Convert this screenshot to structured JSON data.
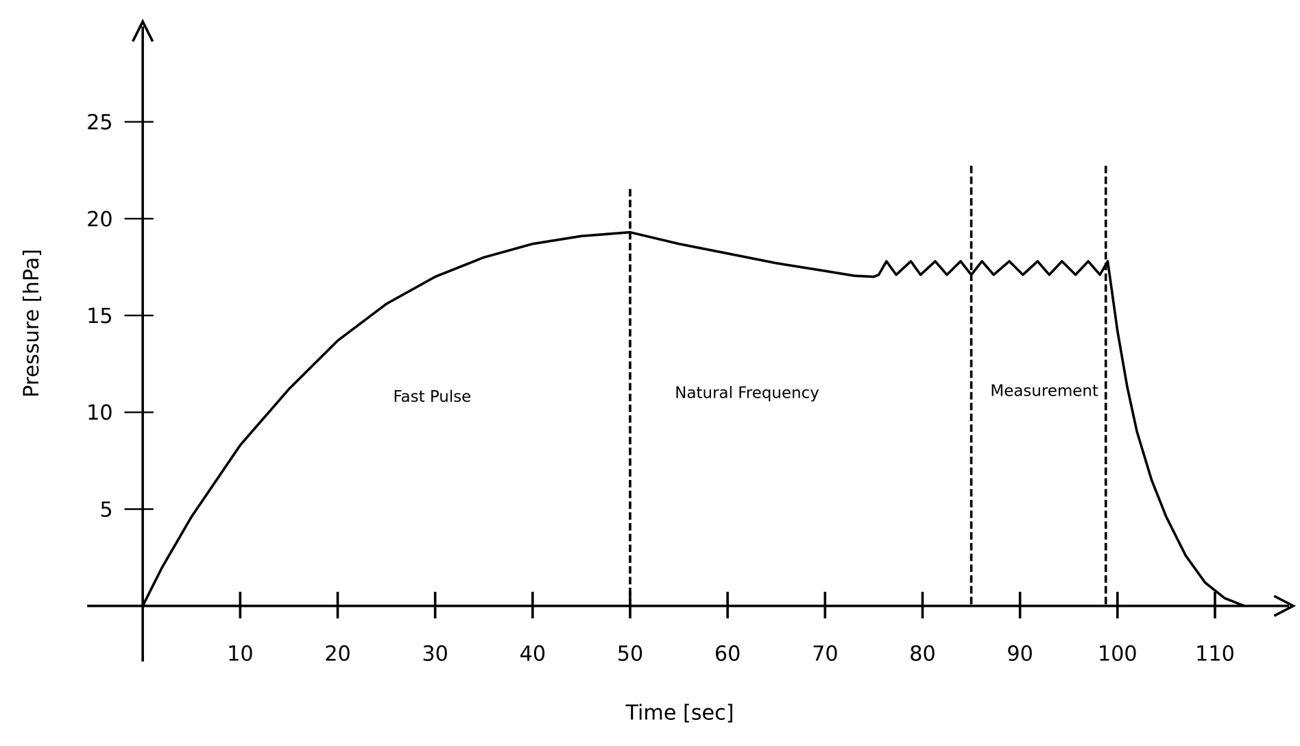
{
  "chart_data": {
    "type": "line",
    "title": "",
    "xlabel": "Time [sec]",
    "ylabel": "Pressure [hPa]",
    "xlim": [
      0,
      117
    ],
    "ylim": [
      0,
      29
    ],
    "x_ticks": [
      10,
      20,
      30,
      40,
      50,
      60,
      70,
      80,
      90,
      100,
      110
    ],
    "y_ticks": [
      5,
      10,
      15,
      20,
      25
    ],
    "grid": false,
    "series": [
      {
        "name": "pressure",
        "x": [
          0,
          2,
          5,
          10,
          15,
          20,
          25,
          30,
          35,
          40,
          45,
          50,
          55,
          60,
          65,
          70,
          73,
          75,
          75.5,
          76.3,
          77.3,
          78.8,
          79.8,
          81.3,
          82.5,
          83.9,
          85,
          86.1,
          87.3,
          88.9,
          90.3,
          91.8,
          93,
          94.3,
          95.7,
          97,
          98.2,
          99,
          100,
          101,
          102,
          103.5,
          105,
          107,
          109,
          111,
          113
        ],
        "y": [
          0,
          2.0,
          4.6,
          8.3,
          11.2,
          13.7,
          15.6,
          17.0,
          18.0,
          18.7,
          19.1,
          19.3,
          18.7,
          18.2,
          17.7,
          17.3,
          17.05,
          17.0,
          17.1,
          17.8,
          17.1,
          17.8,
          17.1,
          17.8,
          17.1,
          17.8,
          17.1,
          17.8,
          17.1,
          17.8,
          17.1,
          17.8,
          17.1,
          17.8,
          17.1,
          17.8,
          17.1,
          17.8,
          14.2,
          11.3,
          9.0,
          6.5,
          4.6,
          2.6,
          1.2,
          0.4,
          0
        ]
      }
    ],
    "phase_boundaries": [
      50,
      85,
      98.8
    ],
    "annotations": [
      {
        "text": "Fast Pulse",
        "x": 29.7,
        "y": 10.8
      },
      {
        "text": "Natural Frequency",
        "x": 62,
        "y": 11.0
      },
      {
        "text": "Measurement",
        "x": 92.5,
        "y": 11.1
      }
    ]
  }
}
